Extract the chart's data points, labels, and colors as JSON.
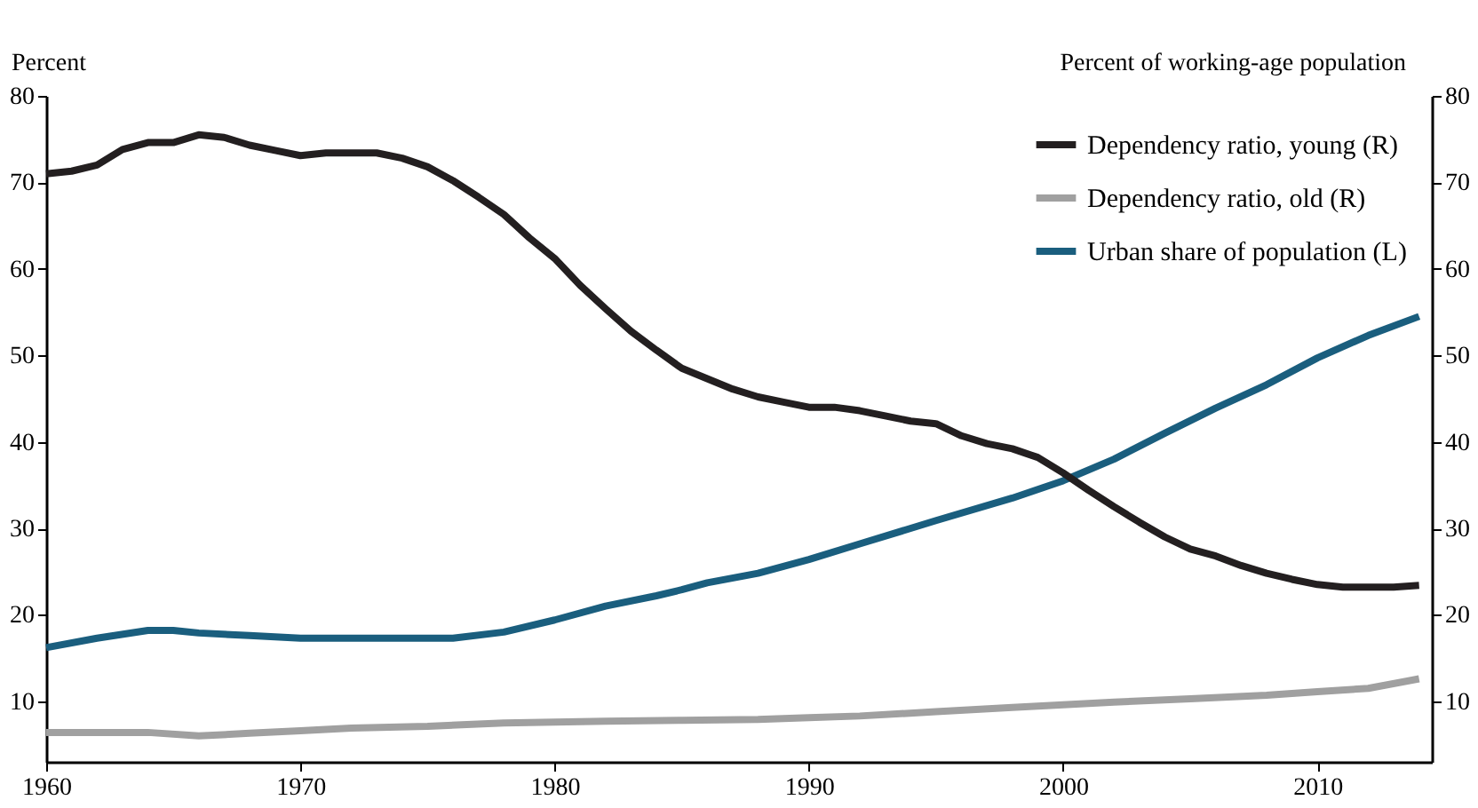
{
  "chart_data": {
    "type": "line",
    "ylabel": "Percent",
    "y2label": "Percent of working-age population",
    "xlim": [
      1960,
      2014.5
    ],
    "xticks": [
      1960,
      1970,
      1980,
      1990,
      2000,
      2010
    ],
    "ylim": [
      3,
      80
    ],
    "yticks": [
      10,
      20,
      30,
      40,
      50,
      60,
      70,
      80
    ],
    "y2lim": [
      3,
      80
    ],
    "y2ticks": [
      10,
      20,
      30,
      40,
      50,
      60,
      70,
      80
    ],
    "grid": false,
    "legend": "top right",
    "marker": "none",
    "line_style": "solid",
    "series": [
      {
        "name": "Dependency ratio, young (R)",
        "color": "#231f20",
        "axis": "y2",
        "x": [
          1960,
          1961,
          1962,
          1963,
          1964,
          1965,
          1966,
          1967,
          1968,
          1969,
          1970,
          1971,
          1972,
          1973,
          1974,
          1975,
          1976,
          1977,
          1978,
          1979,
          1980,
          1981,
          1982,
          1983,
          1984,
          1985,
          1986,
          1987,
          1988,
          1989,
          1990,
          1991,
          1992,
          1993,
          1994,
          1995,
          1996,
          1997,
          1998,
          1999,
          2000,
          2001,
          2002,
          2003,
          2004,
          2005,
          2006,
          2007,
          2008,
          2009,
          2010,
          2011,
          2012,
          2013,
          2014
        ],
        "values": [
          71,
          71.3,
          72,
          73.8,
          74.6,
          74.6,
          75.5,
          75.2,
          74.3,
          73.7,
          73.1,
          73.4,
          73.4,
          73.4,
          72.8,
          71.8,
          70.2,
          68.3,
          66.3,
          63.6,
          61.2,
          58.1,
          55.4,
          52.8,
          50.6,
          48.5,
          47.3,
          46.1,
          45.2,
          44.6,
          44,
          44,
          43.6,
          43,
          42.4,
          42.1,
          40.7,
          39.8,
          39.2,
          38.2,
          36.4,
          34.4,
          32.5,
          30.7,
          29,
          27.6,
          26.8,
          25.7,
          24.8,
          24.1,
          23.5,
          23.2,
          23.2,
          23.2,
          23.4
        ]
      },
      {
        "name": "Dependency ratio, old (R)",
        "color": "#a0a0a0",
        "axis": "y2",
        "x": [
          1960,
          1964,
          1966,
          1968,
          1970,
          1972,
          1975,
          1978,
          1980,
          1982,
          1985,
          1988,
          1990,
          1992,
          1995,
          1998,
          2000,
          2002,
          2005,
          2008,
          2010,
          2012,
          2014
        ],
        "values": [
          6.4,
          6.4,
          6.0,
          6.3,
          6.6,
          6.9,
          7.1,
          7.5,
          7.6,
          7.7,
          7.8,
          7.9,
          8.1,
          8.3,
          8.8,
          9.3,
          9.6,
          9.9,
          10.3,
          10.7,
          11.1,
          11.5,
          12.6
        ]
      },
      {
        "name": "Urban share of population (L)",
        "color": "#1a5e7e",
        "axis": "y",
        "x": [
          1960,
          1962,
          1964,
          1965,
          1966,
          1968,
          1970,
          1972,
          1974,
          1976,
          1978,
          1980,
          1982,
          1984,
          1985,
          1986,
          1988,
          1990,
          1992,
          1995,
          1998,
          2000,
          2002,
          2004,
          2006,
          2008,
          2010,
          2012,
          2014
        ],
        "values": [
          16.2,
          17.3,
          18.2,
          18.2,
          17.9,
          17.6,
          17.3,
          17.3,
          17.3,
          17.3,
          18,
          19.4,
          21,
          22.2,
          22.9,
          23.7,
          24.8,
          26.4,
          28.2,
          30.9,
          33.5,
          35.5,
          38,
          41,
          43.9,
          46.6,
          49.7,
          52.3,
          54.5
        ]
      }
    ]
  }
}
